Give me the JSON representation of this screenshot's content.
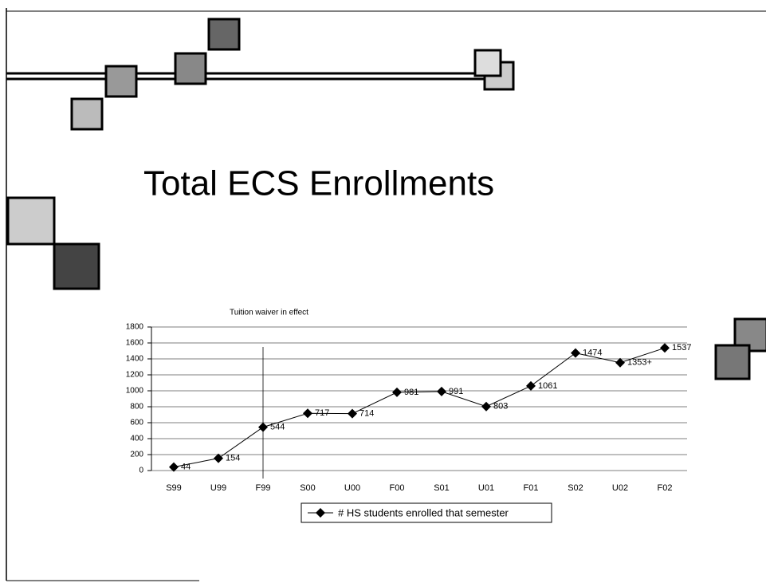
{
  "slide": {
    "title": "Total ECS Enrollments"
  },
  "chart_data": {
    "type": "line",
    "annotation": "Tuition waiver in effect",
    "categories": [
      "S99",
      "U99",
      "F99",
      "S00",
      "U00",
      "F00",
      "S01",
      "U01",
      "F01",
      "S02",
      "U02",
      "F02"
    ],
    "series": [
      {
        "name": "# HS students enrolled that semester",
        "color": "#000000",
        "values": [
          44,
          154,
          544,
          717,
          714,
          981,
          991,
          803,
          1061,
          1474,
          1353,
          1537
        ],
        "value_labels": [
          "44",
          "154",
          "544",
          "717",
          "714",
          "981",
          "991",
          "803",
          "1061",
          "1474",
          "1353+",
          "1537"
        ]
      }
    ],
    "ylim": [
      0,
      1800
    ],
    "yticks": [
      0,
      200,
      400,
      600,
      800,
      1000,
      1200,
      1400,
      1600,
      1800
    ],
    "grid": true,
    "legend": "bottom"
  }
}
